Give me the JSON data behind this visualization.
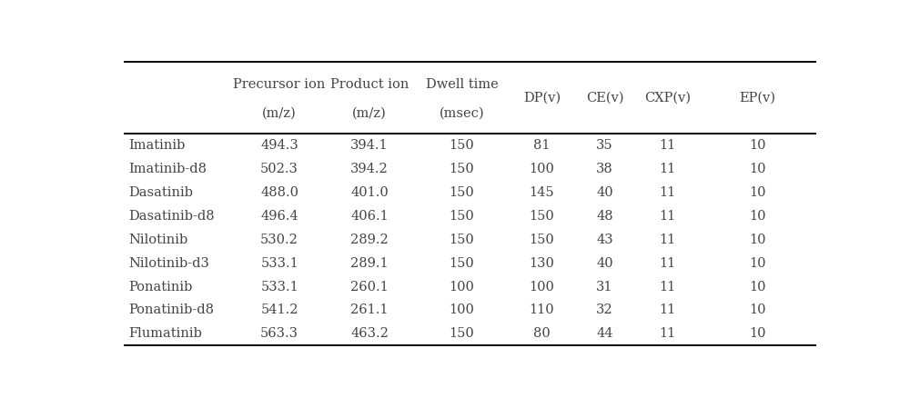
{
  "row_labels": [
    "Imatinib",
    "Imatinib-d8",
    "Dasatinib",
    "Dasatinib-d8",
    "Nilotinib",
    "Nilotinib-d3",
    "Ponatinib",
    "Ponatinib-d8",
    "Flumatinib"
  ],
  "table_data": [
    [
      "494.3",
      "394.1",
      "150",
      "81",
      "35",
      "11",
      "10"
    ],
    [
      "502.3",
      "394.2",
      "150",
      "100",
      "38",
      "11",
      "10"
    ],
    [
      "488.0",
      "401.0",
      "150",
      "145",
      "40",
      "11",
      "10"
    ],
    [
      "496.4",
      "406.1",
      "150",
      "150",
      "48",
      "11",
      "10"
    ],
    [
      "530.2",
      "289.2",
      "150",
      "150",
      "43",
      "11",
      "10"
    ],
    [
      "533.1",
      "289.1",
      "150",
      "130",
      "40",
      "11",
      "10"
    ],
    [
      "533.1",
      "260.1",
      "100",
      "100",
      "31",
      "11",
      "10"
    ],
    [
      "541.2",
      "261.1",
      "100",
      "110",
      "32",
      "11",
      "10"
    ],
    [
      "563.3",
      "463.2",
      "150",
      "80",
      "44",
      "11",
      "10"
    ]
  ],
  "header_top": [
    "Precursor ion",
    "Product ion",
    "Dwell time"
  ],
  "header_bot": [
    "(m/z)",
    "(m/z)",
    "(msec)"
  ],
  "header_single": [
    "DP(v)",
    "CE(v)",
    "CXP(v)",
    "EP(v)"
  ],
  "background_color": "#ffffff",
  "text_color": "#444444",
  "header_fontsize": 10.5,
  "cell_fontsize": 10.5,
  "figsize": [
    10.0,
    4.38
  ]
}
